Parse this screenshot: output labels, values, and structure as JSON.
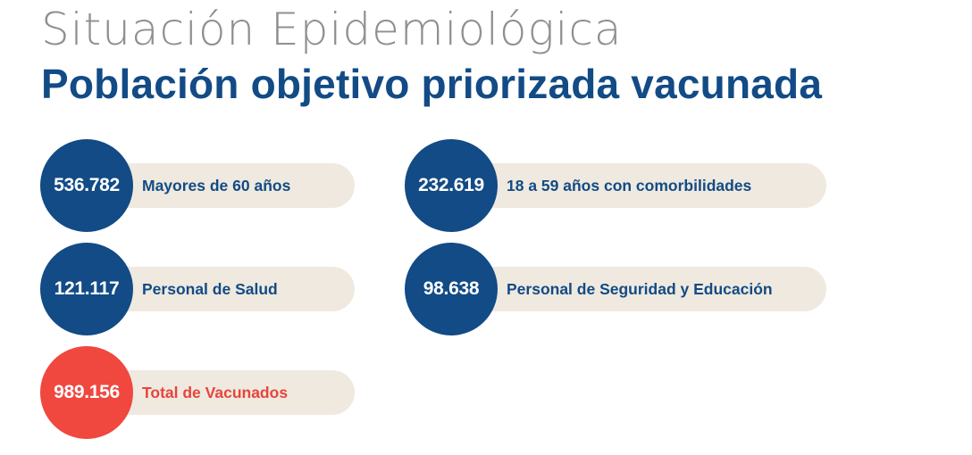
{
  "header": {
    "title": "Situación Epidemiológica",
    "subtitle": "Población objetivo priorizada vacunada"
  },
  "stats": [
    {
      "value": "536.782",
      "label": "Mayores de 60 años"
    },
    {
      "value": "232.619",
      "label": "18 a 59 años con comorbilidades"
    },
    {
      "value": "121.117",
      "label": "Personal de Salud"
    },
    {
      "value": "98.638",
      "label": "Personal de Seguridad y Educación"
    },
    {
      "value": "989.156",
      "label": "Total de Vacunados"
    }
  ],
  "colors": {
    "primary": "#124b85",
    "accent": "#f0473f",
    "pill": "#efe9df",
    "title_gray": "#8f8f8f"
  }
}
